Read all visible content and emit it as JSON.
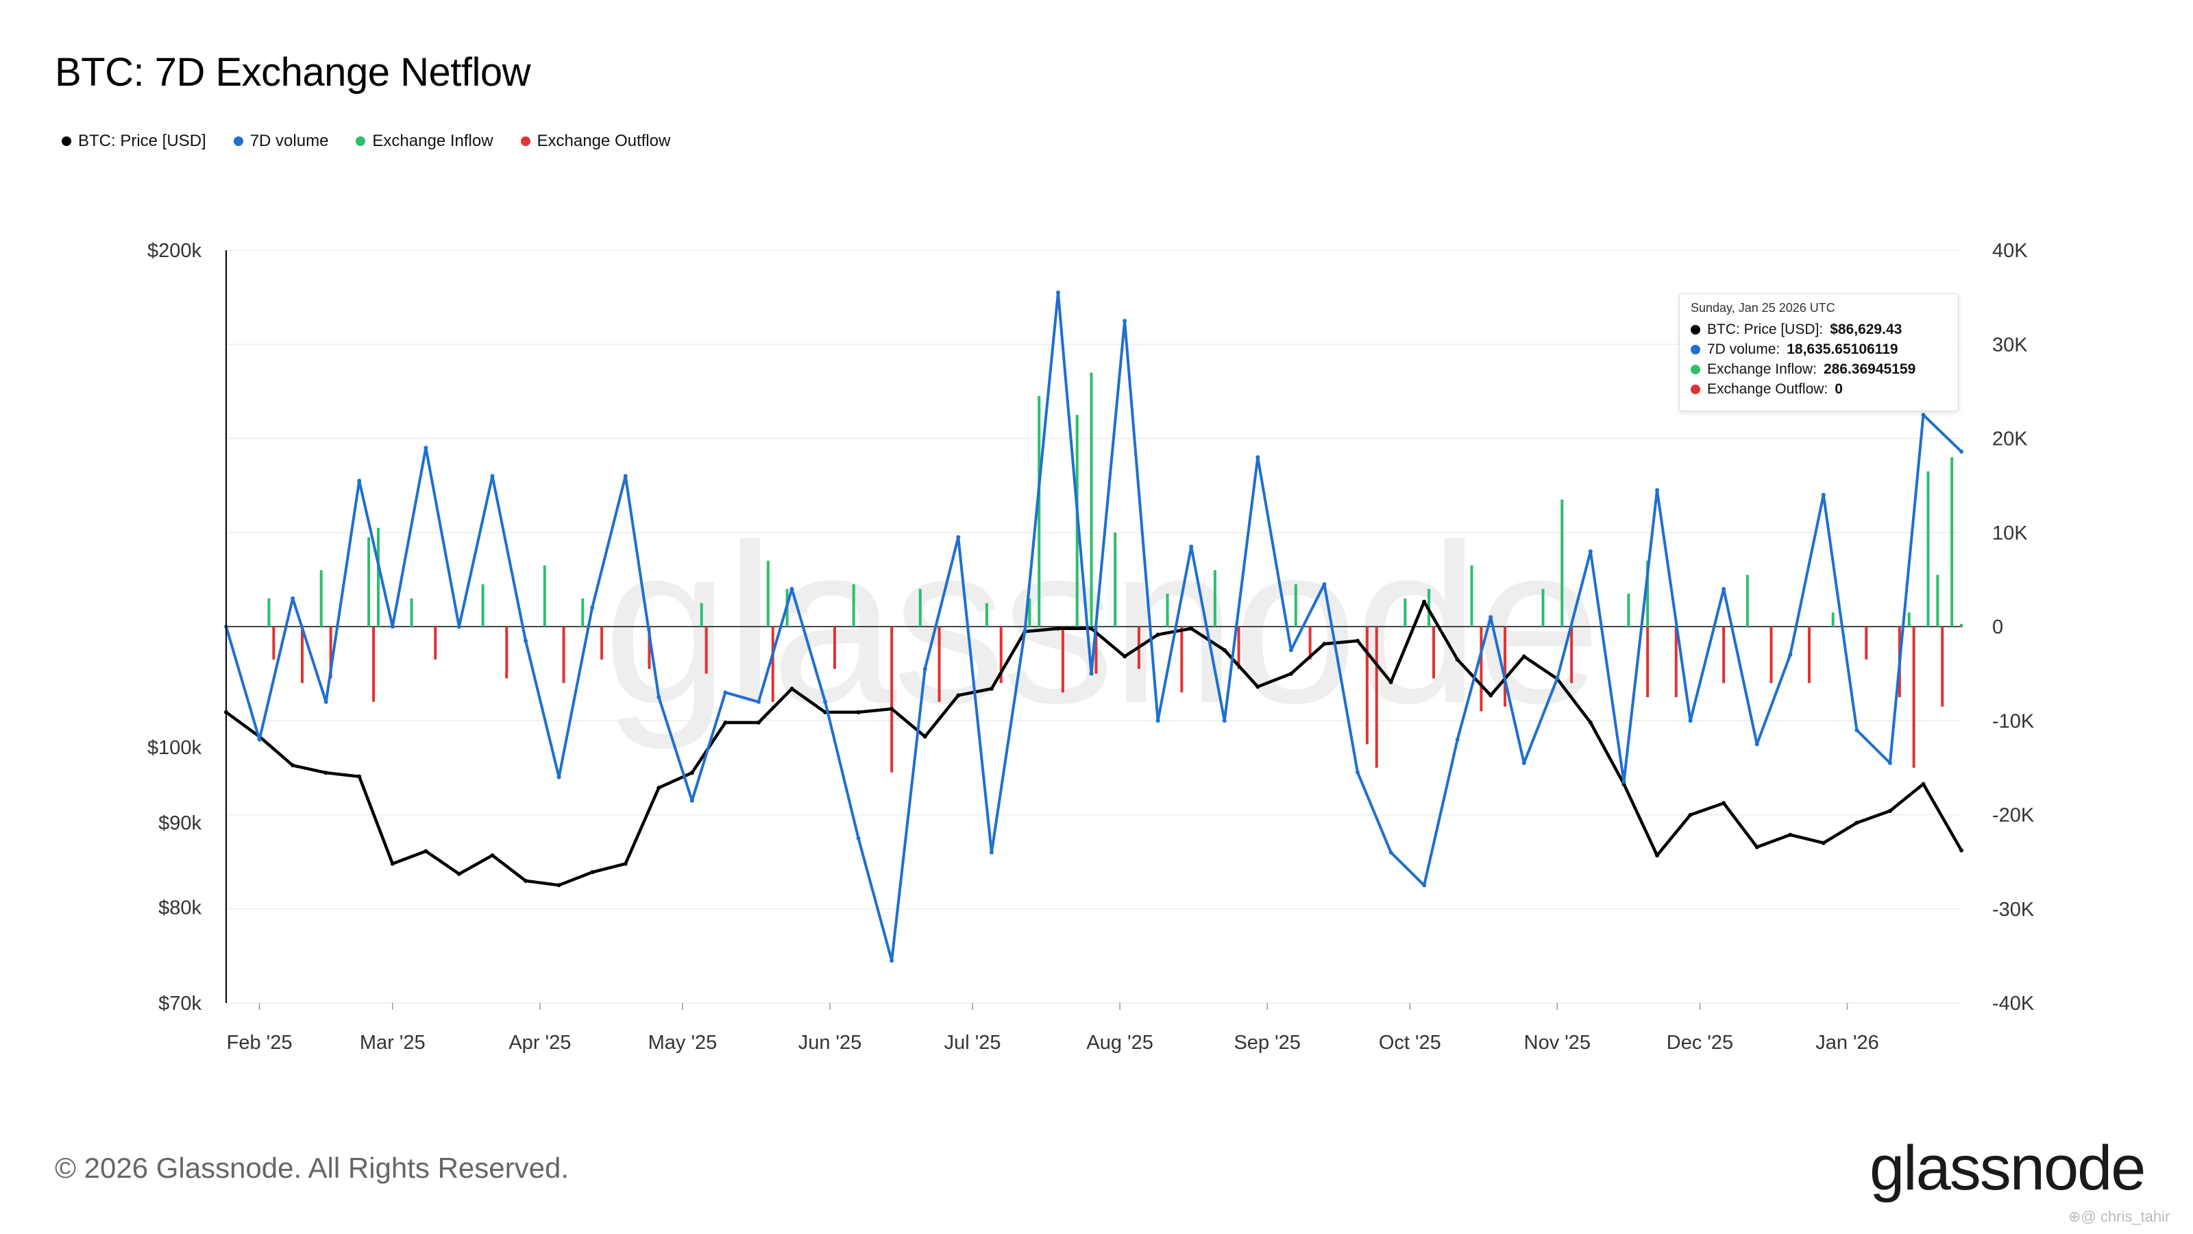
{
  "title": "BTC: 7D Exchange Netflow",
  "legend": [
    {
      "label": "BTC: Price [USD]",
      "color": "#000000"
    },
    {
      "label": "7D volume",
      "color": "#1f6fd0"
    },
    {
      "label": "Exchange Inflow",
      "color": "#2dbe6c"
    },
    {
      "label": "Exchange Outflow",
      "color": "#e03333"
    }
  ],
  "tooltip": {
    "date": "Sunday, Jan 25 2026 UTC",
    "rows": [
      {
        "label": "BTC: Price [USD]:",
        "value": "$86,629.43",
        "color": "#000000"
      },
      {
        "label": "7D volume:",
        "value": "18,635.65106119",
        "color": "#1f6fd0"
      },
      {
        "label": "Exchange Inflow:",
        "value": "286.36945159",
        "color": "#2dbe6c"
      },
      {
        "label": "Exchange Outflow:",
        "value": "0",
        "color": "#e03333"
      }
    ]
  },
  "footer": "© 2026 Glassnode. All Rights Reserved.",
  "brand": "glassnode",
  "watermark": "glassnode",
  "credit": "⊕@ chris_tahir",
  "chart_data": {
    "type": "line",
    "title": "BTC: 7D Exchange Netflow",
    "x_range": [
      "2025-01-25",
      "2026-01-25"
    ],
    "x_ticks": [
      "Feb '25",
      "Mar '25",
      "Apr '25",
      "May '25",
      "Jun '25",
      "Jul '25",
      "Aug '25",
      "Sep '25",
      "Oct '25",
      "Nov '25",
      "Dec '25",
      "Jan '26"
    ],
    "y_left": {
      "scale": "log",
      "range": [
        70000,
        200000
      ],
      "ticks": [
        "$200k",
        "$100k",
        "$90k",
        "$80k",
        "$70k"
      ],
      "tick_values": [
        200000,
        100000,
        90000,
        80000,
        70000
      ]
    },
    "y_right": {
      "scale": "linear",
      "range": [
        -40000,
        40000
      ],
      "ticks": [
        "40K",
        "30K",
        "20K",
        "10K",
        "0",
        "-10K",
        "-20K",
        "-30K",
        "-40K"
      ],
      "tick_values": [
        40000,
        30000,
        20000,
        10000,
        0,
        -10000,
        -20000,
        -30000,
        -40000
      ]
    },
    "grid": true,
    "legend_position": "top-left",
    "series": [
      {
        "name": "BTC: Price [USD]",
        "color": "#000000",
        "axis": "left",
        "x": [
          "2025-01-25",
          "2025-02-01",
          "2025-02-08",
          "2025-02-15",
          "2025-02-22",
          "2025-03-01",
          "2025-03-08",
          "2025-03-15",
          "2025-03-22",
          "2025-03-29",
          "2025-04-05",
          "2025-04-12",
          "2025-04-19",
          "2025-04-26",
          "2025-05-03",
          "2025-05-10",
          "2025-05-17",
          "2025-05-24",
          "2025-05-31",
          "2025-06-07",
          "2025-06-14",
          "2025-06-21",
          "2025-06-28",
          "2025-07-05",
          "2025-07-12",
          "2025-07-19",
          "2025-07-26",
          "2025-08-02",
          "2025-08-09",
          "2025-08-16",
          "2025-08-23",
          "2025-08-30",
          "2025-09-06",
          "2025-09-13",
          "2025-09-20",
          "2025-09-27",
          "2025-10-04",
          "2025-10-11",
          "2025-10-18",
          "2025-10-25",
          "2025-11-01",
          "2025-11-08",
          "2025-11-15",
          "2025-11-22",
          "2025-11-29",
          "2025-12-06",
          "2025-12-13",
          "2025-12-20",
          "2025-12-27",
          "2026-01-03",
          "2026-01-10",
          "2026-01-17",
          "2026-01-25"
        ],
        "values": [
          105000,
          101500,
          97500,
          96500,
          96000,
          85000,
          86500,
          83800,
          86000,
          83000,
          82500,
          84000,
          85000,
          94500,
          96500,
          103500,
          103500,
          108500,
          105000,
          105000,
          105500,
          101500,
          107500,
          108500,
          117500,
          118000,
          118000,
          113500,
          117000,
          118000,
          114500,
          108800,
          110800,
          115500,
          116000,
          109500,
          122500,
          113000,
          107500,
          113500,
          110000,
          103500,
          95000,
          86000,
          91000,
          92500,
          87000,
          88500,
          87500,
          90000,
          91500,
          95000,
          86600
        ]
      },
      {
        "name": "7D volume",
        "color": "#1f6fd0",
        "axis": "right",
        "x": [
          "2025-01-25",
          "2025-02-01",
          "2025-02-08",
          "2025-02-15",
          "2025-02-22",
          "2025-03-01",
          "2025-03-08",
          "2025-03-15",
          "2025-03-22",
          "2025-03-29",
          "2025-04-05",
          "2025-04-12",
          "2025-04-19",
          "2025-04-26",
          "2025-05-03",
          "2025-05-10",
          "2025-05-17",
          "2025-05-24",
          "2025-05-31",
          "2025-06-07",
          "2025-06-14",
          "2025-06-21",
          "2025-06-28",
          "2025-07-05",
          "2025-07-12",
          "2025-07-19",
          "2025-07-26",
          "2025-08-02",
          "2025-08-09",
          "2025-08-16",
          "2025-08-23",
          "2025-08-30",
          "2025-09-06",
          "2025-09-13",
          "2025-09-20",
          "2025-09-27",
          "2025-10-04",
          "2025-10-11",
          "2025-10-18",
          "2025-10-25",
          "2025-11-01",
          "2025-11-08",
          "2025-11-15",
          "2025-11-22",
          "2025-11-29",
          "2025-12-06",
          "2025-12-13",
          "2025-12-20",
          "2025-12-27",
          "2026-01-03",
          "2026-01-10",
          "2026-01-17",
          "2026-01-25"
        ],
        "values": [
          0,
          -12000,
          3000,
          -8000,
          15500,
          0,
          19000,
          0,
          16000,
          -1500,
          -16000,
          2000,
          16000,
          -7500,
          -18500,
          -7000,
          -8000,
          4000,
          -8000,
          -22500,
          -35500,
          -4500,
          9500,
          -24000,
          -500,
          35500,
          -5000,
          32500,
          -10000,
          8500,
          -10000,
          18000,
          -2500,
          4500,
          -15500,
          -24000,
          -27500,
          -12000,
          1000,
          -14500,
          -5500,
          8000,
          -16500,
          14500,
          -10000,
          4000,
          -12500,
          -3000,
          14000,
          -11000,
          -14500,
          22500,
          18600
        ]
      },
      {
        "name": "Exchange Inflow",
        "color": "#2dbe6c",
        "axis": "right",
        "x": [
          "2025-02-03",
          "2025-02-14",
          "2025-02-24",
          "2025-02-26",
          "2025-03-05",
          "2025-03-20",
          "2025-04-02",
          "2025-04-10",
          "2025-05-05",
          "2025-05-19",
          "2025-05-23",
          "2025-06-06",
          "2025-06-20",
          "2025-07-04",
          "2025-07-13",
          "2025-07-15",
          "2025-07-23",
          "2025-07-26",
          "2025-07-31",
          "2025-08-11",
          "2025-08-21",
          "2025-09-07",
          "2025-09-30",
          "2025-10-05",
          "2025-10-14",
          "2025-10-29",
          "2025-11-02",
          "2025-11-16",
          "2025-11-20",
          "2025-12-11",
          "2025-12-29",
          "2026-01-14",
          "2026-01-18",
          "2026-01-20",
          "2026-01-23",
          "2026-01-25"
        ],
        "values": [
          3000,
          6000,
          9500,
          10500,
          3000,
          4500,
          6500,
          3000,
          2500,
          7000,
          4000,
          4500,
          4000,
          2500,
          3000,
          24500,
          22500,
          27000,
          10000,
          3500,
          6000,
          4500,
          3000,
          4000,
          6500,
          4000,
          13500,
          3500,
          7000,
          5500,
          1500,
          1500,
          16500,
          5500,
          18000,
          286
        ]
      },
      {
        "name": "Exchange Outflow",
        "color": "#e03333",
        "axis": "right",
        "x": [
          "2025-02-04",
          "2025-02-10",
          "2025-02-16",
          "2025-02-25",
          "2025-03-10",
          "2025-03-25",
          "2025-04-06",
          "2025-04-14",
          "2025-04-24",
          "2025-05-06",
          "2025-05-20",
          "2025-06-02",
          "2025-06-14",
          "2025-06-24",
          "2025-07-07",
          "2025-07-20",
          "2025-07-27",
          "2025-08-05",
          "2025-08-14",
          "2025-08-26",
          "2025-09-10",
          "2025-09-22",
          "2025-09-24",
          "2025-10-06",
          "2025-10-16",
          "2025-10-21",
          "2025-11-04",
          "2025-11-20",
          "2025-11-26",
          "2025-12-06",
          "2025-12-16",
          "2025-12-24",
          "2026-01-05",
          "2026-01-12",
          "2026-01-15",
          "2026-01-21",
          "2026-01-25"
        ],
        "values": [
          -3500,
          -6000,
          -5500,
          -8000,
          -3500,
          -5500,
          -6000,
          -3500,
          -4500,
          -5000,
          -8000,
          -4500,
          -15500,
          -8000,
          -6000,
          -7000,
          -5000,
          -4500,
          -7000,
          -4500,
          -3500,
          -12500,
          -15000,
          -5500,
          -9000,
          -8500,
          -6000,
          -7500,
          -7500,
          -6000,
          -6000,
          -6000,
          -3500,
          -7500,
          -15000,
          -8500,
          0
        ]
      }
    ]
  }
}
